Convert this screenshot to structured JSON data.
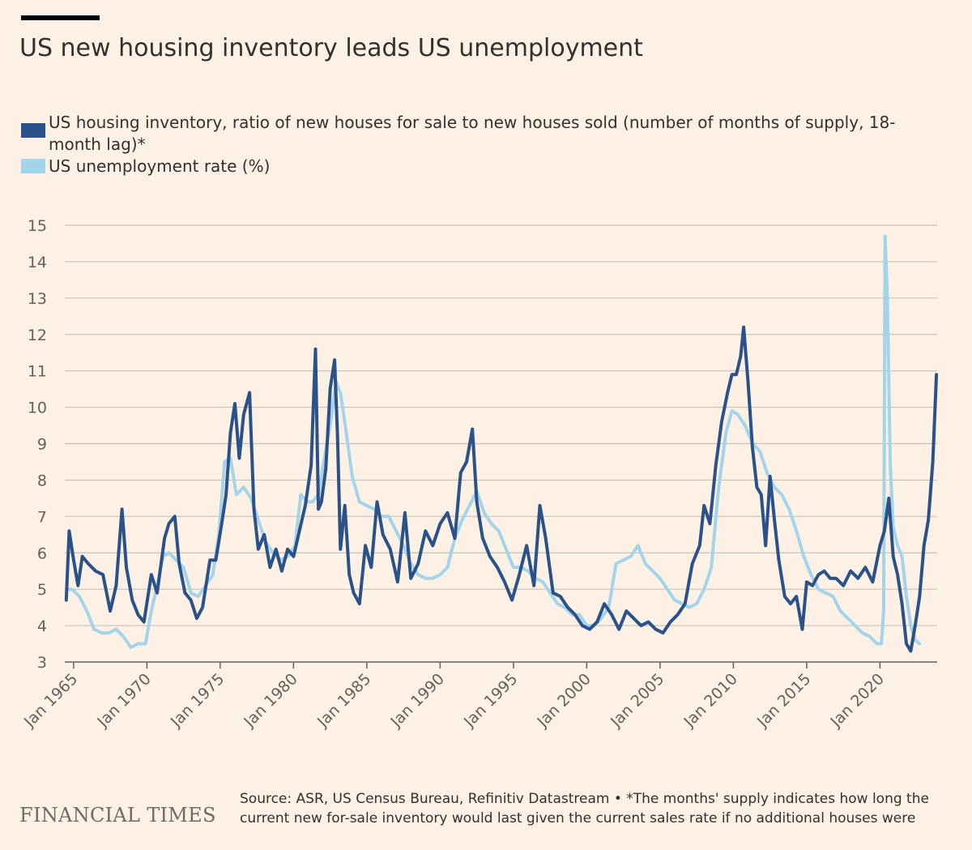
{
  "title": "US new housing inventory leads US unemployment",
  "source": "Source: ASR, US Census Bureau, Refinitiv Datastream • *The months' supply indicates how long the current new for-sale inventory would last given the current sales rate if no additional houses were",
  "logo": "FINANCIAL TIMES",
  "colors": {
    "background": "#fdf1e6",
    "inventory": "#2a5289",
    "unemployment": "#a3d4ea",
    "grid": "#c9c1b9"
  },
  "chart_data": {
    "type": "line",
    "ylim": [
      3,
      15
    ],
    "y_ticks": [
      3,
      4,
      5,
      6,
      7,
      8,
      9,
      10,
      11,
      12,
      13,
      14,
      15
    ],
    "xlim": [
      1964.4,
      2023.9
    ],
    "x_ticks": [
      1965,
      1970,
      1975,
      1980,
      1985,
      1990,
      1995,
      2000,
      2005,
      2010,
      2015,
      2020
    ],
    "x_tick_labels": [
      "Jan 1965",
      "Jan 1970",
      "Jan 1975",
      "Jan 1980",
      "Jan 1985",
      "Jan 1990",
      "Jan 1995",
      "Jan 2000",
      "Jan 2005",
      "Jan 2010",
      "Jan 2015",
      "Jan 2020"
    ],
    "grid": true,
    "legend": "top-left",
    "series": [
      {
        "name": "US housing inventory, ratio of new houses for sale to new houses sold (number of months of supply, 18-month lag)*",
        "color": "#2a5289",
        "x": [
          1964.5,
          1964.7,
          1965.0,
          1965.3,
          1965.6,
          1966.0,
          1966.5,
          1967.0,
          1967.5,
          1967.9,
          1968.3,
          1968.6,
          1969.0,
          1969.4,
          1969.8,
          1970.3,
          1970.7,
          1971.2,
          1971.5,
          1971.9,
          1972.2,
          1972.6,
          1973.0,
          1973.4,
          1973.8,
          1974.3,
          1974.7,
          1975.1,
          1975.4,
          1975.7,
          1976.0,
          1976.3,
          1976.6,
          1977.0,
          1977.3,
          1977.6,
          1978.0,
          1978.4,
          1978.8,
          1979.2,
          1979.6,
          1980.0,
          1980.4,
          1980.8,
          1981.2,
          1981.5,
          1981.7,
          1981.9,
          1982.2,
          1982.5,
          1982.8,
          1983.0,
          1983.2,
          1983.5,
          1983.8,
          1984.1,
          1984.5,
          1984.9,
          1985.3,
          1985.7,
          1986.1,
          1986.6,
          1987.1,
          1987.6,
          1988.0,
          1988.5,
          1989.0,
          1989.5,
          1990.0,
          1990.5,
          1991.0,
          1991.4,
          1991.8,
          1992.2,
          1992.5,
          1992.9,
          1993.4,
          1993.9,
          1994.4,
          1994.9,
          1995.4,
          1995.9,
          1996.4,
          1996.8,
          1997.2,
          1997.7,
          1998.2,
          1998.7,
          1999.2,
          1999.7,
          2000.2,
          2000.7,
          2001.2,
          2001.7,
          2002.2,
          2002.7,
          2003.2,
          2003.7,
          2004.2,
          2004.7,
          2005.2,
          2005.7,
          2006.2,
          2006.7,
          2007.2,
          2007.7,
          2008.0,
          2008.4,
          2008.8,
          2009.2,
          2009.6,
          2009.9,
          2010.2,
          2010.5,
          2010.7,
          2011.0,
          2011.3,
          2011.6,
          2011.9,
          2012.2,
          2012.5,
          2012.8,
          2013.1,
          2013.5,
          2013.9,
          2014.3,
          2014.7,
          2015.0,
          2015.4,
          2015.8,
          2016.2,
          2016.6,
          2017.0,
          2017.5,
          2018.0,
          2018.5,
          2019.0,
          2019.5,
          2020.0,
          2020.3,
          2020.6,
          2020.9,
          2021.2,
          2021.5,
          2021.8,
          2022.1,
          2022.4,
          2022.7,
          2023.0,
          2023.3,
          2023.6,
          2023.85
        ],
        "values": [
          4.7,
          6.6,
          5.8,
          5.1,
          5.9,
          5.7,
          5.5,
          5.4,
          4.4,
          5.1,
          7.2,
          5.6,
          4.7,
          4.3,
          4.1,
          5.4,
          4.9,
          6.4,
          6.8,
          7.0,
          5.7,
          4.9,
          4.7,
          4.2,
          4.5,
          5.8,
          5.8,
          6.8,
          7.6,
          9.3,
          10.1,
          8.6,
          9.8,
          10.4,
          7.2,
          6.1,
          6.5,
          5.6,
          6.1,
          5.5,
          6.1,
          5.9,
          6.6,
          7.3,
          8.4,
          11.6,
          7.2,
          7.4,
          8.3,
          10.5,
          11.3,
          9.2,
          6.1,
          7.3,
          5.4,
          4.9,
          4.6,
          6.2,
          5.6,
          7.4,
          6.5,
          6.1,
          5.2,
          7.1,
          5.3,
          5.7,
          6.6,
          6.2,
          6.8,
          7.1,
          6.4,
          8.2,
          8.5,
          9.4,
          7.4,
          6.4,
          5.9,
          5.6,
          5.2,
          4.7,
          5.4,
          6.2,
          5.1,
          7.3,
          6.4,
          4.9,
          4.8,
          4.5,
          4.3,
          4.0,
          3.9,
          4.1,
          4.6,
          4.3,
          3.9,
          4.4,
          4.2,
          4.0,
          4.1,
          3.9,
          3.8,
          4.1,
          4.3,
          4.6,
          5.7,
          6.2,
          7.3,
          6.8,
          8.4,
          9.6,
          10.4,
          10.9,
          10.9,
          11.4,
          12.2,
          10.7,
          8.9,
          7.8,
          7.6,
          6.2,
          8.1,
          6.9,
          5.8,
          4.8,
          4.6,
          4.8,
          3.9,
          5.2,
          5.1,
          5.4,
          5.5,
          5.3,
          5.3,
          5.1,
          5.5,
          5.3,
          5.6,
          5.2,
          6.2,
          6.6,
          7.5,
          5.9,
          5.4,
          4.6,
          3.5,
          3.3,
          4.0,
          4.8,
          6.2,
          6.9,
          8.5,
          10.9
        ]
      },
      {
        "name": "US unemployment rate (%)",
        "color": "#a3d4ea",
        "x": [
          1964.5,
          1964.9,
          1965.4,
          1965.9,
          1966.4,
          1966.9,
          1967.4,
          1967.9,
          1968.4,
          1968.9,
          1969.4,
          1969.9,
          1970.3,
          1970.7,
          1971.1,
          1971.5,
          1972.0,
          1972.5,
          1973.0,
          1973.5,
          1974.0,
          1974.5,
          1974.9,
          1975.3,
          1975.7,
          1976.1,
          1976.6,
          1977.1,
          1977.6,
          1978.1,
          1978.6,
          1979.1,
          1979.6,
          1980.1,
          1980.5,
          1980.9,
          1981.3,
          1981.7,
          1982.1,
          1982.5,
          1982.9,
          1983.2,
          1983.6,
          1984.0,
          1984.5,
          1985.0,
          1985.5,
          1986.0,
          1986.5,
          1987.0,
          1987.5,
          1988.0,
          1988.5,
          1989.0,
          1989.5,
          1990.0,
          1990.5,
          1991.0,
          1991.5,
          1992.0,
          1992.5,
          1993.0,
          1993.5,
          1994.0,
          1994.5,
          1995.0,
          1995.5,
          1996.0,
          1996.5,
          1997.0,
          1997.5,
          1998.0,
          1998.5,
          1999.0,
          1999.5,
          2000.0,
          2000.5,
          2001.0,
          2001.5,
          2002.0,
          2002.5,
          2003.0,
          2003.5,
          2004.0,
          2004.5,
          2005.0,
          2005.5,
          2006.0,
          2006.5,
          2007.0,
          2007.5,
          2008.0,
          2008.5,
          2009.0,
          2009.5,
          2009.9,
          2010.3,
          2010.8,
          2011.3,
          2011.8,
          2012.3,
          2012.8,
          2013.3,
          2013.8,
          2014.3,
          2014.8,
          2015.3,
          2015.8,
          2016.3,
          2016.8,
          2017.3,
          2017.8,
          2018.3,
          2018.8,
          2019.3,
          2019.8,
          2020.1,
          2020.25,
          2020.35,
          2020.5,
          2020.7,
          2020.9,
          2021.2,
          2021.5,
          2021.8,
          2022.1,
          2022.4,
          2022.7
        ],
        "values": [
          5.0,
          5.0,
          4.8,
          4.4,
          3.9,
          3.8,
          3.8,
          3.9,
          3.7,
          3.4,
          3.5,
          3.5,
          4.4,
          5.1,
          5.9,
          6.0,
          5.8,
          5.6,
          4.9,
          4.8,
          5.1,
          5.4,
          6.5,
          8.5,
          8.6,
          7.6,
          7.8,
          7.5,
          6.9,
          6.3,
          6.0,
          5.8,
          5.9,
          6.2,
          7.6,
          7.4,
          7.4,
          7.6,
          8.6,
          9.5,
          10.7,
          10.4,
          9.3,
          8.1,
          7.4,
          7.3,
          7.2,
          7.0,
          7.0,
          6.6,
          6.2,
          5.7,
          5.4,
          5.3,
          5.3,
          5.4,
          5.6,
          6.4,
          6.9,
          7.3,
          7.7,
          7.1,
          6.8,
          6.6,
          6.1,
          5.6,
          5.6,
          5.5,
          5.3,
          5.2,
          4.9,
          4.6,
          4.5,
          4.3,
          4.3,
          4.0,
          4.0,
          4.2,
          4.5,
          5.7,
          5.8,
          5.9,
          6.2,
          5.7,
          5.5,
          5.3,
          5.0,
          4.7,
          4.6,
          4.5,
          4.6,
          5.0,
          5.6,
          7.8,
          9.3,
          9.9,
          9.8,
          9.5,
          9.0,
          8.8,
          8.2,
          7.8,
          7.6,
          7.2,
          6.6,
          5.9,
          5.4,
          5.0,
          4.9,
          4.8,
          4.4,
          4.2,
          4.0,
          3.8,
          3.7,
          3.5,
          3.5,
          4.4,
          14.7,
          13.0,
          8.4,
          6.7,
          6.2,
          5.9,
          4.8,
          4.0,
          3.6,
          3.5
        ]
      }
    ]
  }
}
